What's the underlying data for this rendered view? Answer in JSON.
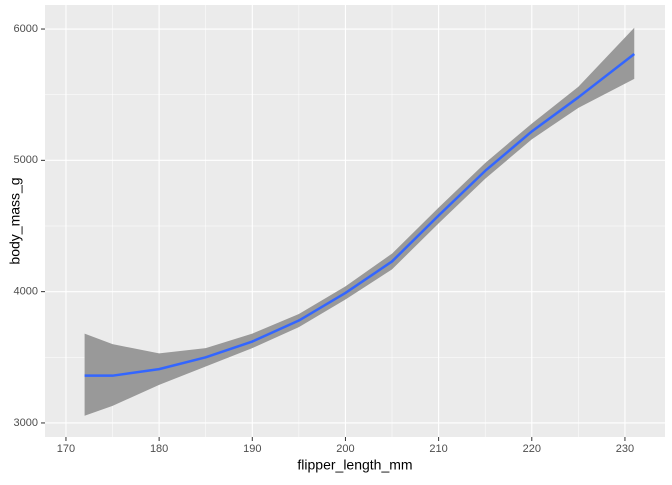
{
  "chart_data": {
    "type": "smooth",
    "x_label": "flipper_length_mm",
    "y_label": "body_mass_g",
    "x": [
      172,
      175,
      180,
      185,
      190,
      195,
      200,
      205,
      210,
      215,
      220,
      225,
      231
    ],
    "values": [
      3360,
      3360,
      3410,
      3500,
      3620,
      3780,
      3990,
      4230,
      4580,
      4920,
      5220,
      5480,
      5810
    ],
    "lower": [
      3055,
      3130,
      3290,
      3430,
      3570,
      3730,
      3940,
      4170,
      4520,
      4860,
      5160,
      5400,
      5620
    ],
    "upper": [
      3680,
      3600,
      3530,
      3570,
      3680,
      3830,
      4040,
      4290,
      4640,
      4980,
      5280,
      5560,
      6010
    ],
    "color": "#3366ff",
    "band_color": "#999999",
    "xlim": [
      167.75,
      234.3
    ],
    "xticks": [
      170,
      180,
      190,
      200,
      210,
      220,
      230
    ],
    "ylim": [
      2893,
      6183
    ],
    "yticks": [
      3000,
      4000,
      5000,
      6000
    ],
    "grid": true
  }
}
